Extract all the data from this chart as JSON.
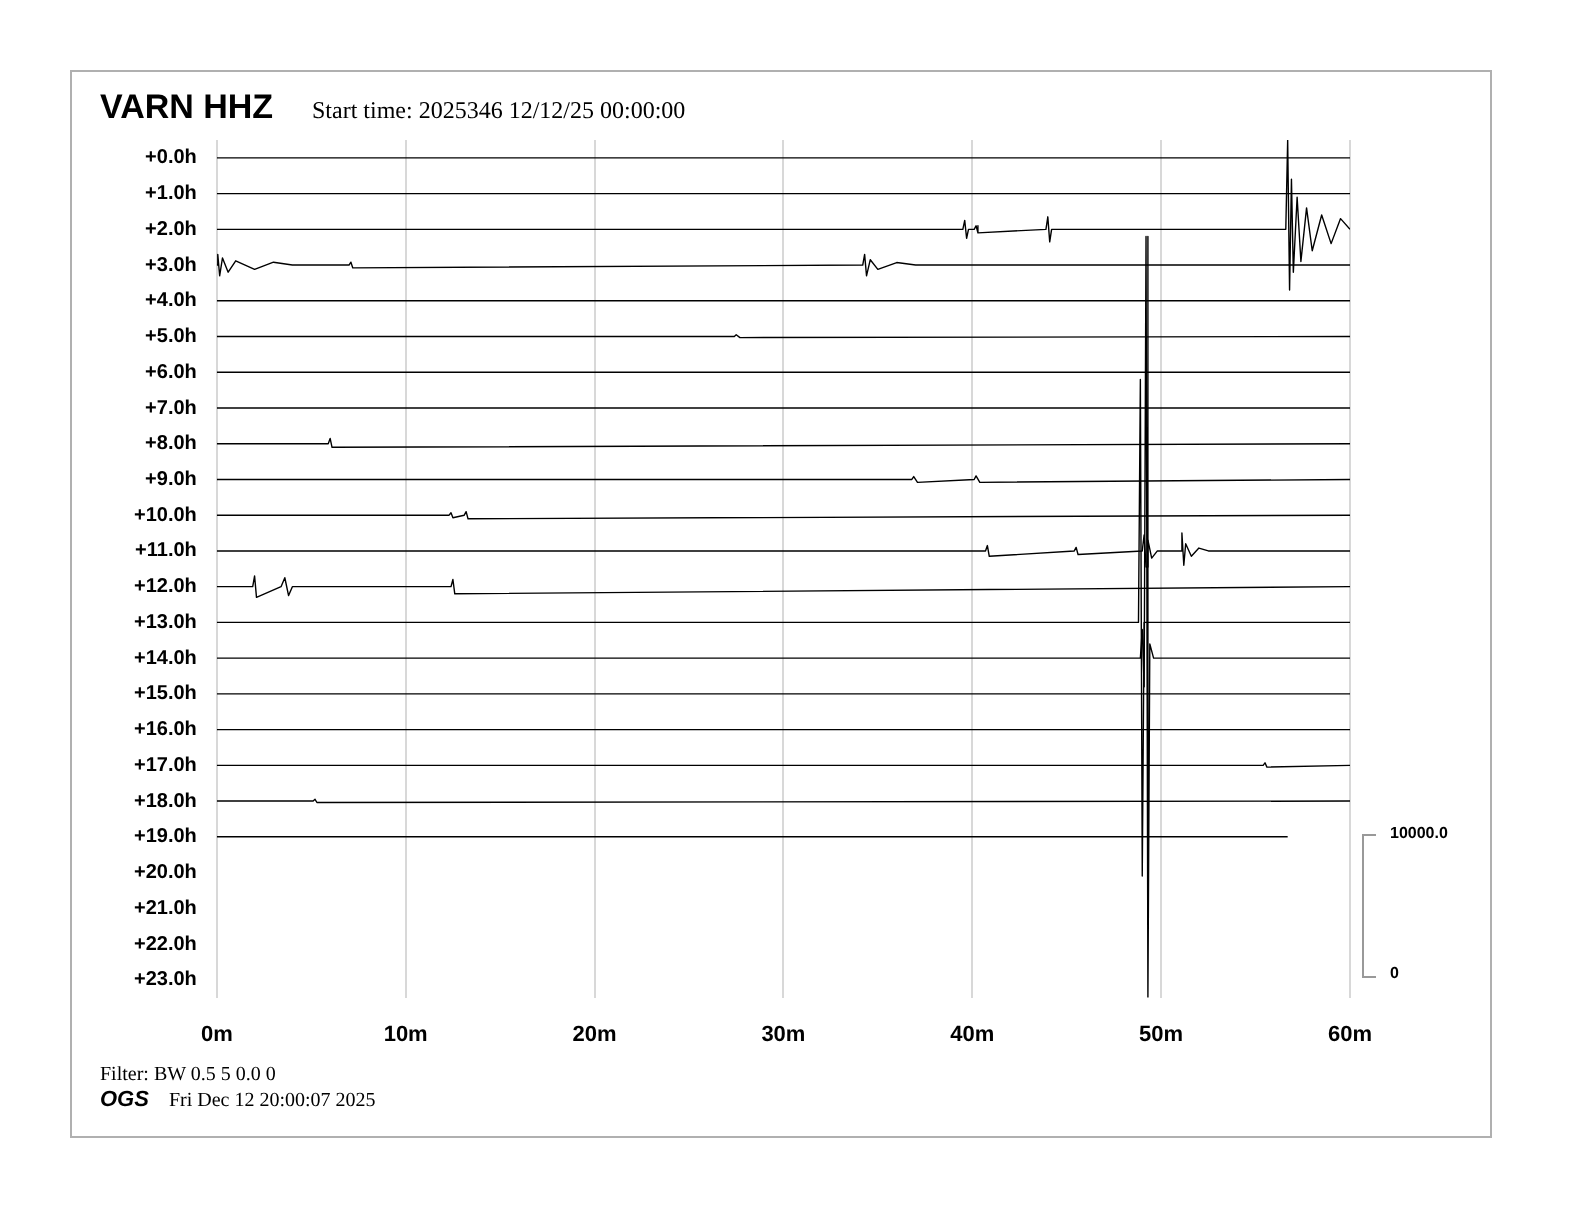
{
  "chart_data": {
    "type": "line",
    "title": "VARN HHZ",
    "subtitle": "Start time: 2025346 12/12/25 00:00:00",
    "annotations": [
      "Filter: BW 0.5 5 0.0 0",
      "OGS",
      "Fri Dec 12 20:00:07 2025",
      "10000.0",
      "0"
    ],
    "xlim": [
      0,
      60
    ],
    "xticks": [
      {
        "value": 0,
        "label": "0m"
      },
      {
        "value": 10,
        "label": "10m"
      },
      {
        "value": 20,
        "label": "20m"
      },
      {
        "value": 30,
        "label": "30m"
      },
      {
        "value": 40,
        "label": "40m"
      },
      {
        "value": 50,
        "label": "50m"
      },
      {
        "value": 60,
        "label": "60m"
      }
    ],
    "ylim": [
      23.5,
      -0.5
    ],
    "yticks": [
      {
        "value": 0,
        "label": "+0.0h"
      },
      {
        "value": 1,
        "label": "+1.0h"
      },
      {
        "value": 2,
        "label": "+2.0h"
      },
      {
        "value": 3,
        "label": "+3.0h"
      },
      {
        "value": 4,
        "label": "+4.0h"
      },
      {
        "value": 5,
        "label": "+5.0h"
      },
      {
        "value": 6,
        "label": "+6.0h"
      },
      {
        "value": 7,
        "label": "+7.0h"
      },
      {
        "value": 8,
        "label": "+8.0h"
      },
      {
        "value": 9,
        "label": "+9.0h"
      },
      {
        "value": 10,
        "label": "+10.0h"
      },
      {
        "value": 11,
        "label": "+11.0h"
      },
      {
        "value": 12,
        "label": "+12.0h"
      },
      {
        "value": 13,
        "label": "+13.0h"
      },
      {
        "value": 14,
        "label": "+14.0h"
      },
      {
        "value": 15,
        "label": "+15.0h"
      },
      {
        "value": 16,
        "label": "+16.0h"
      },
      {
        "value": 17,
        "label": "+17.0h"
      },
      {
        "value": 18,
        "label": "+18.0h"
      },
      {
        "value": 19,
        "label": "+19.0h"
      },
      {
        "value": 20,
        "label": "+20.0h"
      },
      {
        "value": 21,
        "label": "+21.0h"
      },
      {
        "value": 22,
        "label": "+22.0h"
      },
      {
        "value": 23,
        "label": "+23.0h"
      }
    ],
    "grid": "x",
    "marker": "none",
    "series": [
      {
        "color": "#000000",
        "x": [
          0,
          60
        ],
        "values": [
          0,
          0
        ]
      },
      {
        "color": "#000000",
        "x": [
          0,
          60
        ],
        "values": [
          1,
          1
        ]
      },
      {
        "color": "#000000",
        "x": [
          0,
          39.5,
          39.6,
          39.7,
          39.8,
          40.1,
          40.2,
          40.3,
          43.9,
          44.0,
          44.1,
          44.2,
          56.6,
          56.7,
          56.8,
          56.9,
          57.0,
          57.2,
          57.4,
          57.7,
          58.0,
          58.5,
          59.0,
          59.5,
          60
        ],
        "values": [
          2,
          2,
          1.75,
          2.25,
          2,
          2,
          1.9,
          2.1,
          2,
          1.65,
          2.35,
          2,
          2,
          -0.5,
          3.7,
          0.6,
          3.2,
          1.1,
          2.9,
          1.4,
          2.6,
          1.6,
          2.4,
          1.7,
          2
        ]
      },
      {
        "color": "#000000",
        "x": [
          0,
          0.05,
          0.15,
          0.3,
          0.6,
          1,
          2,
          3,
          4,
          7,
          7.1,
          7.2,
          34.2,
          34.3,
          34.4,
          34.6,
          35,
          36,
          37,
          60
        ],
        "values": [
          3,
          2.7,
          3.3,
          2.8,
          3.2,
          2.88,
          3.12,
          2.92,
          3,
          3,
          2.92,
          3.08,
          3,
          2.7,
          3.3,
          2.85,
          3.12,
          2.93,
          3,
          3
        ]
      },
      {
        "color": "#000000",
        "x": [
          0,
          60
        ],
        "values": [
          4,
          4
        ]
      },
      {
        "color": "#000000",
        "x": [
          0,
          27.4,
          27.5,
          27.7,
          60
        ],
        "values": [
          5,
          5,
          4.95,
          5.03,
          5
        ]
      },
      {
        "color": "#000000",
        "x": [
          0,
          60
        ],
        "values": [
          6,
          6
        ]
      },
      {
        "color": "#000000",
        "x": [
          0,
          60
        ],
        "values": [
          7,
          7
        ]
      },
      {
        "color": "#000000",
        "x": [
          0,
          5.9,
          6.0,
          6.1,
          60
        ],
        "values": [
          8,
          8,
          7.85,
          8.1,
          8
        ]
      },
      {
        "color": "#000000",
        "x": [
          0,
          36.8,
          36.9,
          37.1,
          40.1,
          40.2,
          40.4,
          60
        ],
        "values": [
          9,
          9,
          8.92,
          9.08,
          9,
          8.9,
          9.08,
          9
        ]
      },
      {
        "color": "#000000",
        "x": [
          0,
          12.3,
          12.4,
          12.5,
          13.1,
          13.2,
          13.3,
          60
        ],
        "values": [
          10,
          10,
          9.93,
          10.07,
          10,
          9.9,
          10.1,
          10
        ]
      },
      {
        "color": "#000000",
        "x": [
          0,
          40.7,
          40.8,
          40.9,
          45.4,
          45.5,
          45.6,
          49.0,
          49.1,
          49.2,
          49.3,
          49.5,
          49.8,
          51.0,
          51.1,
          51.2,
          51.3,
          51.6,
          52.0,
          52.5,
          60
        ],
        "values": [
          11,
          11,
          10.85,
          11.15,
          11,
          10.9,
          11.1,
          11,
          10.55,
          11.45,
          10.7,
          11.2,
          11,
          11,
          10.5,
          11.4,
          10.8,
          11.15,
          10.92,
          11,
          11
        ]
      },
      {
        "color": "#000000",
        "x": [
          0,
          1.9,
          2.0,
          2.1,
          3.4,
          3.6,
          3.8,
          4.0,
          12.4,
          12.5,
          12.6,
          60
        ],
        "values": [
          12,
          12,
          11.7,
          12.3,
          12,
          11.75,
          12.25,
          12,
          12,
          11.8,
          12.2,
          12
        ]
      },
      {
        "color": "#000000",
        "x": [
          0,
          48.8,
          48.9,
          49.0,
          49.1,
          60
        ],
        "values": [
          13,
          13,
          6.2,
          20.1,
          13,
          13
        ]
      },
      {
        "color": "#000000",
        "x": [
          0,
          48.9,
          49.0,
          49.1,
          49.2,
          49.3,
          49.4,
          49.6,
          60
        ],
        "values": [
          14,
          14,
          13.2,
          14.8,
          2.2,
          23.5,
          13.6,
          14,
          14
        ]
      },
      {
        "color": "#000000",
        "x": [
          0,
          60
        ],
        "values": [
          15,
          15
        ]
      },
      {
        "color": "#000000",
        "x": [
          0,
          60
        ],
        "values": [
          16,
          16
        ]
      },
      {
        "color": "#000000",
        "x": [
          0,
          55.4,
          55.5,
          55.6,
          60
        ],
        "values": [
          17,
          17,
          16.93,
          17.05,
          17
        ]
      },
      {
        "color": "#000000",
        "x": [
          0,
          5.1,
          5.2,
          5.3,
          60
        ],
        "values": [
          18,
          18,
          17.95,
          18.04,
          18
        ]
      },
      {
        "color": "#000000",
        "x": [
          0,
          56.7
        ],
        "values": [
          19,
          19
        ]
      }
    ]
  }
}
